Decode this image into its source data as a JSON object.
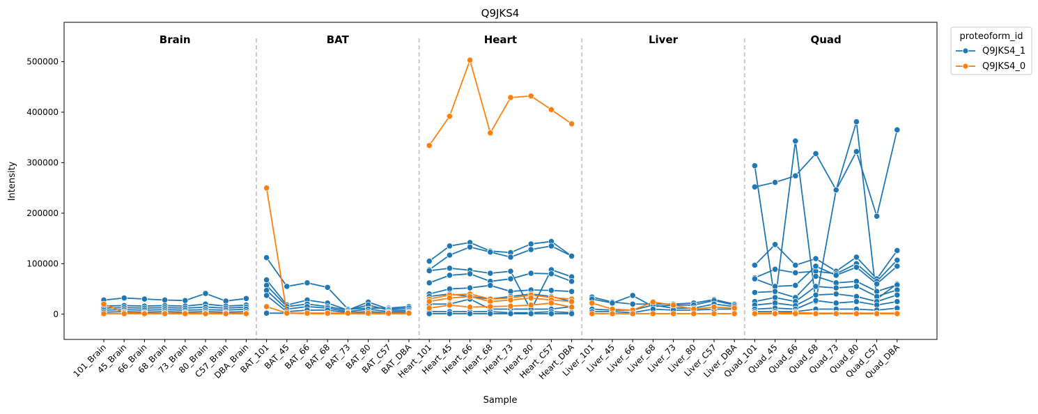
{
  "chart_data": {
    "type": "line",
    "title": "Q9JKS4",
    "xlabel": "Sample",
    "ylabel": "Intensity",
    "ylim": [
      -50000,
      578000
    ],
    "yticks": [
      0,
      100000,
      200000,
      300000,
      400000,
      500000
    ],
    "grid": false,
    "legend": {
      "title": "proteoform_id",
      "placement": "outside-top-right"
    },
    "categories": [
      "101_Brain",
      "45_Brain",
      "66_Brain",
      "68_Brain",
      "73_Brain",
      "80_Brain",
      "C57_Brain",
      "DBA_Brain",
      "BAT_101",
      "BAT_45",
      "BAT_66",
      "BAT_68",
      "BAT_73",
      "BAT_80",
      "BAT_C57",
      "BAT_DBA",
      "Heart_101",
      "Heart_45",
      "Heart_66",
      "Heart_68",
      "Heart_73",
      "Heart_80",
      "Heart_C57",
      "Heart_DBA",
      "Liver_101",
      "Liver_45",
      "Liver_66",
      "Liver_68",
      "Liver_73",
      "Liver_80",
      "Liver_C57",
      "Liver_DBA",
      "Quad_101",
      "Quad_45",
      "Quad_66",
      "Quad_68",
      "Quad_73",
      "Quad_80",
      "Quad_C57",
      "Quad_DBA"
    ],
    "panels": [
      "Brain",
      "BAT",
      "Heart",
      "Liver",
      "Quad"
    ],
    "series": [
      {
        "name": "Q9JKS4_1",
        "color": "#1f77b4",
        "lines": [
          {
            "panel": "Brain",
            "values": [
              28000,
              32000,
              30000,
              28000,
              27000,
              41000,
              26000,
              31000
            ]
          },
          {
            "panel": "Brain",
            "values": [
              16000,
              17000,
              16000,
              17000,
              16000,
              20000,
              16000,
              18000
            ]
          },
          {
            "panel": "Brain",
            "values": [
              12000,
              13000,
              12000,
              13000,
              12000,
              14000,
              12000,
              14000
            ]
          },
          {
            "panel": "Brain",
            "values": [
              8000,
              9000,
              8000,
              9000,
              8000,
              9000,
              8000,
              10000
            ]
          },
          {
            "panel": "Brain",
            "values": [
              4000,
              5000,
              4000,
              5000,
              4000,
              5000,
              4000,
              5000
            ]
          },
          {
            "panel": "BAT",
            "values": [
              112000,
              55000,
              62000,
              53000,
              10000,
              12000,
              12000,
              15000
            ]
          },
          {
            "panel": "BAT",
            "values": [
              68000,
              18000,
              28000,
              22000,
              8000,
              24000,
              10000,
              12000
            ]
          },
          {
            "panel": "BAT",
            "values": [
              57000,
              15000,
              20000,
              15000,
              8000,
              18000,
              8000,
              8000
            ]
          },
          {
            "panel": "BAT",
            "values": [
              47000,
              10000,
              15000,
              12000,
              5000,
              10000,
              5000,
              5000
            ]
          },
          {
            "panel": "BAT",
            "values": [
              37000,
              5000,
              8000,
              8000,
              3000,
              5000,
              3000,
              3000
            ]
          },
          {
            "panel": "BAT",
            "values": [
              2000,
              2000,
              2000,
              2000,
              2000,
              2000,
              2000,
              2000
            ]
          },
          {
            "panel": "Heart",
            "values": [
              105000,
              135000,
              142000,
              125000,
              122000,
              139000,
              144000,
              115000
            ]
          },
          {
            "panel": "Heart",
            "values": [
              88000,
              117000,
              133000,
              123000,
              113000,
              128000,
              135000,
              115000
            ]
          },
          {
            "panel": "Heart",
            "values": [
              86000,
              91000,
              87000,
              81000,
              85000,
              8000,
              88000,
              74000
            ]
          },
          {
            "panel": "Heart",
            "values": [
              62000,
              77000,
              80000,
              65000,
              70000,
              81000,
              80000,
              65000
            ]
          },
          {
            "panel": "Heart",
            "values": [
              40000,
              50000,
              52000,
              57000,
              45000,
              48000,
              47000,
              45000
            ]
          },
          {
            "panel": "Heart",
            "values": [
              35000,
              40000,
              35000,
              30000,
              35000,
              40000,
              35000,
              25000
            ]
          },
          {
            "panel": "Heart",
            "values": [
              20000,
              20000,
              30000,
              10000,
              10000,
              10000,
              10000,
              15000
            ]
          },
          {
            "panel": "Heart",
            "values": [
              5000,
              5000,
              5000,
              5000,
              3000,
              3000,
              5000,
              3000
            ]
          },
          {
            "panel": "Heart",
            "values": [
              1000,
              1000,
              1000,
              1000,
              1000,
              1000,
              1000,
              1000
            ]
          },
          {
            "panel": "Liver",
            "values": [
              34000,
              24000,
              20000,
              20000,
              20000,
              22000,
              29000,
              20000
            ]
          },
          {
            "panel": "Liver",
            "values": [
              30000,
              22000,
              37000,
              15000,
              18000,
              18000,
              27000,
              18000
            ]
          },
          {
            "panel": "Liver",
            "values": [
              10000,
              8000,
              8000,
              18000,
              12000,
              12000,
              20000,
              15000
            ]
          },
          {
            "panel": "Liver",
            "values": [
              5000,
              5000,
              3000,
              10000,
              8000,
              8000,
              10000,
              10000
            ]
          },
          {
            "panel": "Quad",
            "values": [
              252000,
              261000,
              274000,
              318000,
              246000,
              322000,
              194000,
              365000
            ]
          },
          {
            "panel": "Quad",
            "values": [
              294000,
              25000,
              343000,
              25000,
              246000,
              381000,
              30000,
              60000
            ]
          },
          {
            "panel": "Quad",
            "values": [
              97000,
              138000,
              97000,
              110000,
              85000,
              113000,
              70000,
              126000
            ]
          },
          {
            "panel": "Quad",
            "values": [
              72000,
              89000,
              82000,
              85000,
              80000,
              100000,
              65000,
              107000
            ]
          },
          {
            "panel": "Quad",
            "values": [
              70000,
              55000,
              57000,
              95000,
              77000,
              93000,
              60000,
              95000
            ]
          },
          {
            "panel": "Quad",
            "values": [
              43000,
              45000,
              33000,
              75000,
              62000,
              65000,
              45000,
              58000
            ]
          },
          {
            "panel": "Quad",
            "values": [
              25000,
              33000,
              25000,
              55000,
              52000,
              55000,
              35000,
              48000
            ]
          },
          {
            "panel": "Quad",
            "values": [
              18000,
              22000,
              17000,
              38000,
              40000,
              35000,
              25000,
              38000
            ]
          },
          {
            "panel": "Quad",
            "values": [
              10000,
              12000,
              10000,
              27000,
              22000,
              25000,
              18000,
              25000
            ]
          },
          {
            "panel": "Quad",
            "values": [
              5000,
              5000,
              5000,
              10000,
              10000,
              10000,
              8000,
              12000
            ]
          }
        ]
      },
      {
        "name": "Q9JKS4_0",
        "color": "#ff7f0e",
        "lines": [
          {
            "panel": "Brain",
            "values": [
              20000,
              3000,
              2000,
              2000,
              2000,
              2000,
              2000,
              2000
            ]
          },
          {
            "panel": "Brain",
            "values": [
              1000,
              1000,
              1000,
              1000,
              1000,
              1000,
              1000,
              1000
            ]
          },
          {
            "panel": "BAT",
            "values": [
              250000,
              2000,
              1000,
              1000,
              1000,
              1000,
              1000,
              1000
            ]
          },
          {
            "panel": "BAT",
            "values": [
              15000,
              2000,
              2000,
              2000,
              2000,
              2000,
              2000,
              2000
            ]
          },
          {
            "panel": "Heart",
            "values": [
              334000,
              392000,
              503000,
              359000,
              429000,
              432000,
              405000,
              377000
            ]
          },
          {
            "panel": "Heart",
            "values": [
              30000,
              38000,
              40000,
              30000,
              32000,
              38000,
              33000,
              30000
            ]
          },
          {
            "panel": "Heart",
            "values": [
              25000,
              32000,
              35000,
              25000,
              28000,
              32000,
              28000,
              25000
            ]
          },
          {
            "panel": "Heart",
            "values": [
              12000,
              18000,
              14000,
              15000,
              16000,
              18000,
              22000,
              14000
            ]
          },
          {
            "panel": "Liver",
            "values": [
              22000,
              10000,
              8000,
              24000,
              18000,
              10000,
              14000,
              12000
            ]
          },
          {
            "panel": "Liver",
            "values": [
              1000,
              1000,
              1000,
              1000,
              1000,
              1000,
              1000,
              1000
            ]
          },
          {
            "panel": "Quad",
            "values": [
              2000,
              2000,
              3000,
              2000,
              2000,
              2000,
              2000,
              2000
            ]
          },
          {
            "panel": "Quad",
            "values": [
              1000,
              1000,
              1000,
              1000,
              1000,
              1000,
              1000,
              1000
            ]
          }
        ]
      }
    ]
  }
}
